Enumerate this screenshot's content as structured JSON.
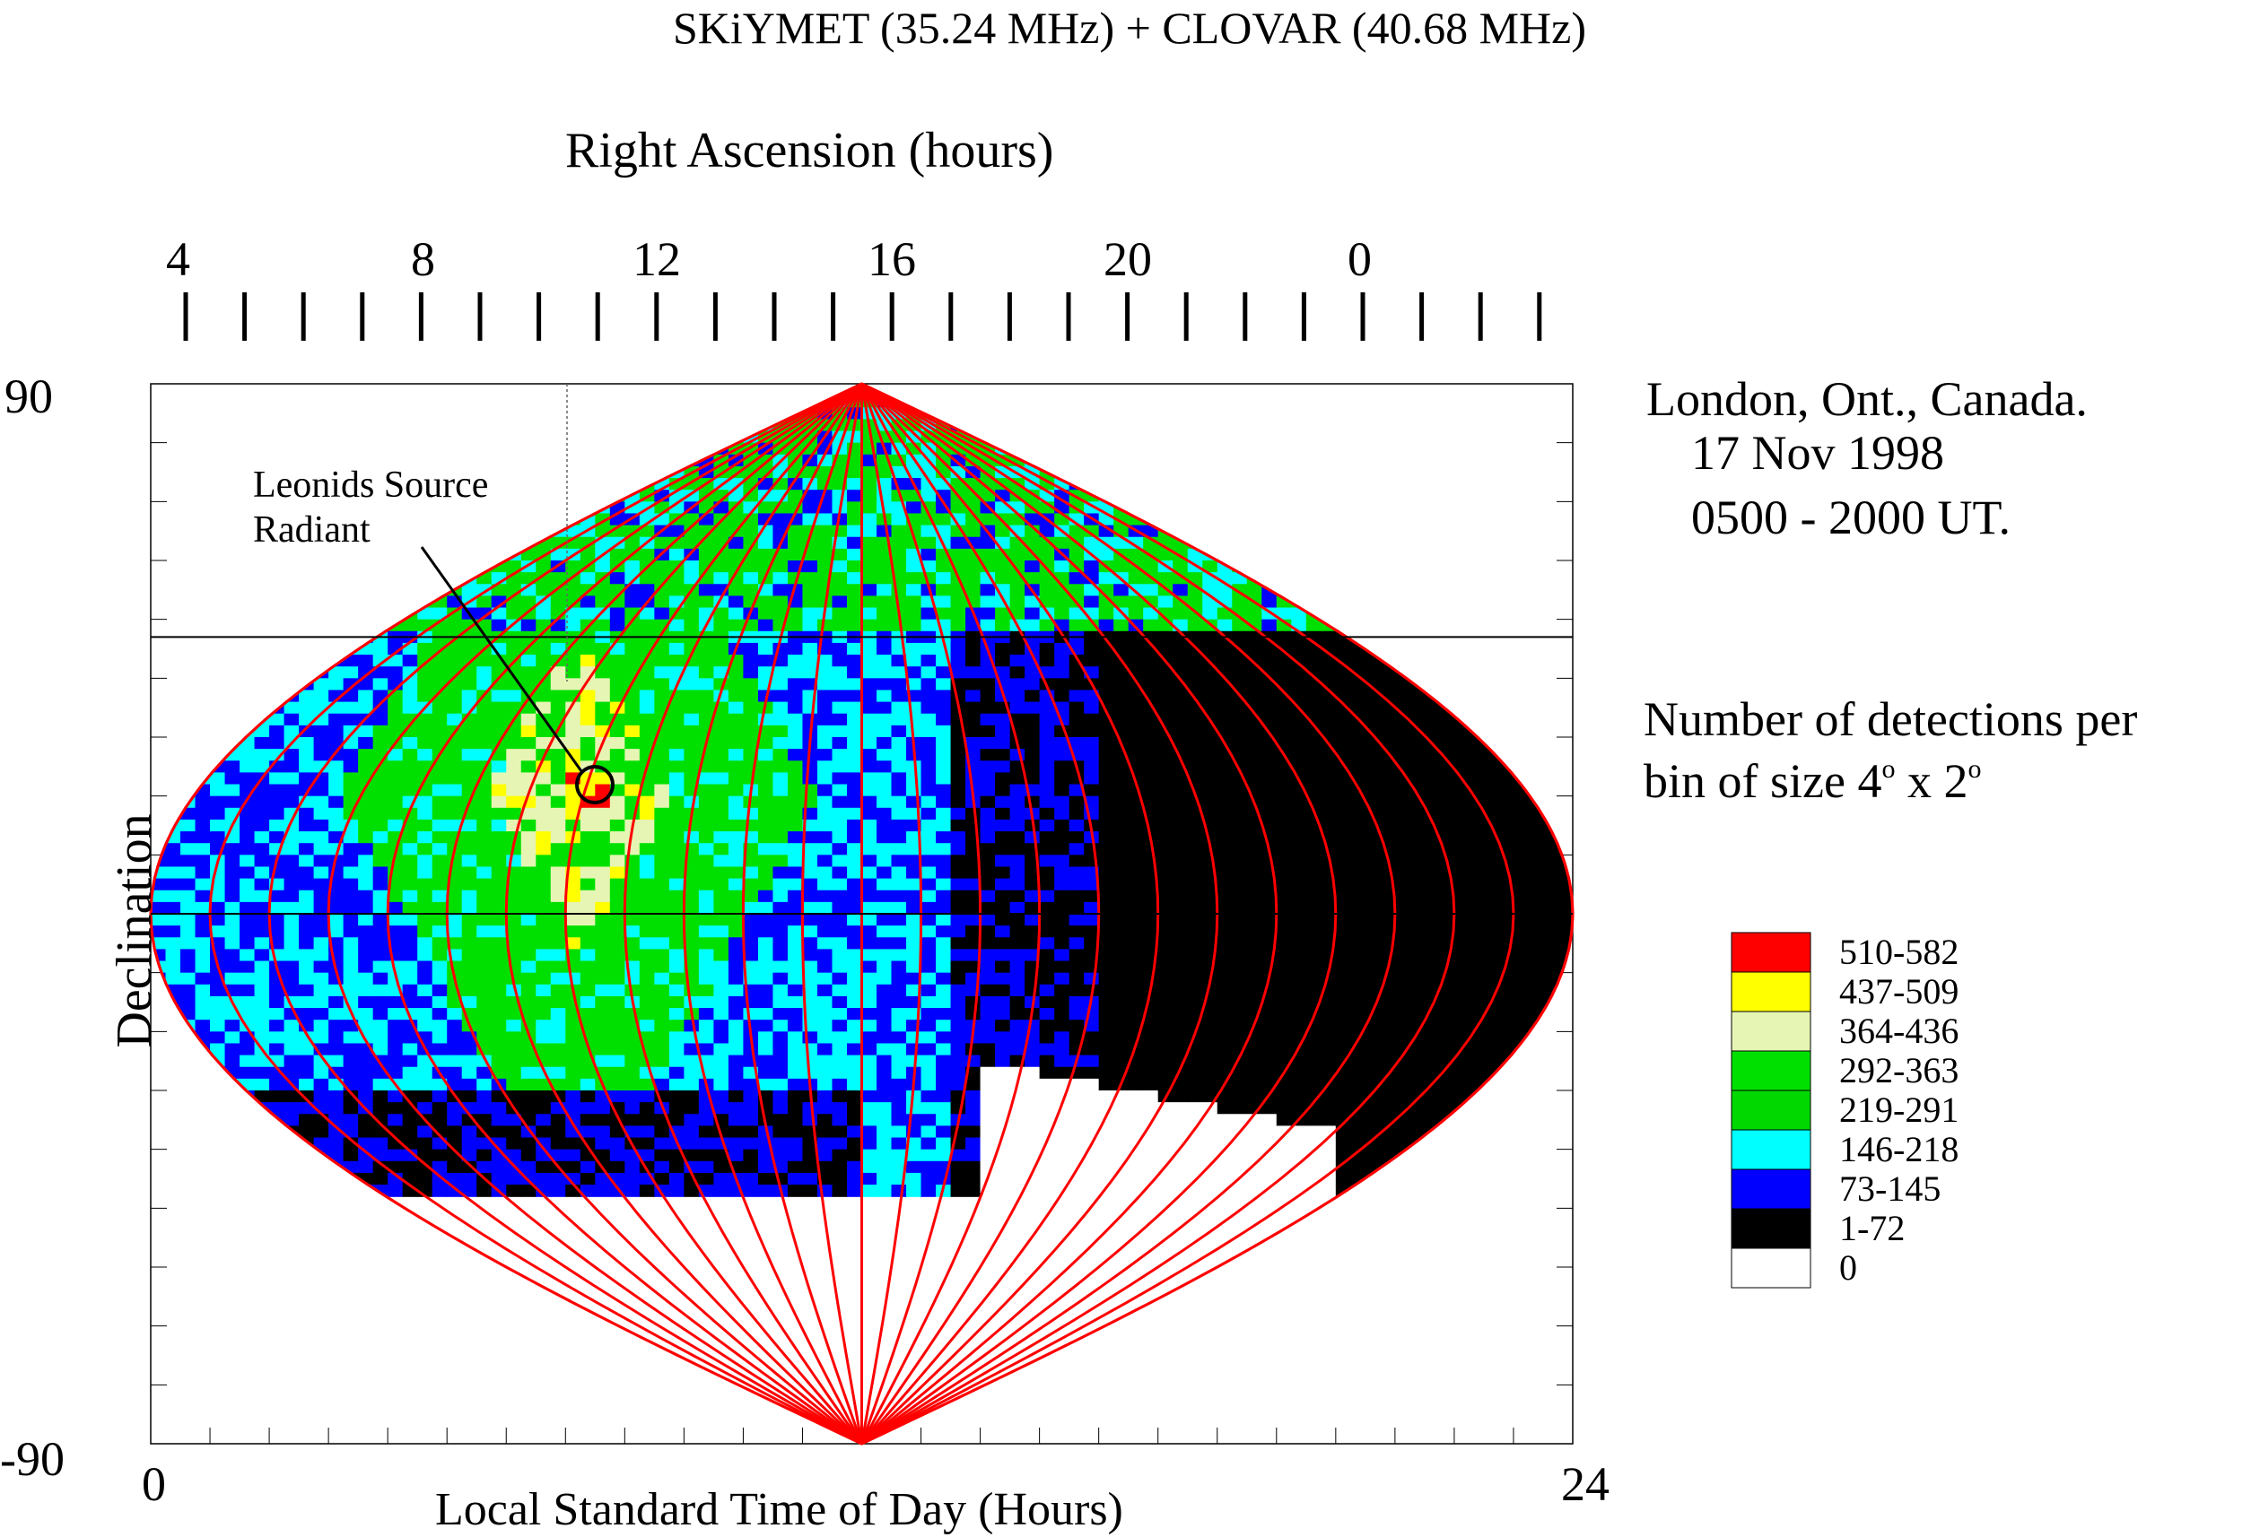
{
  "chart_data": {
    "type": "heatmap",
    "title": "SKiYMET (35.24 MHz) + CLOVAR (40.68 MHz)",
    "top_axis_label": "Right Ascension (hours)",
    "top_tick_labels": [
      "4",
      "8",
      "12",
      "16",
      "20",
      "0"
    ],
    "xlabel": "Local Standard Time of Day (Hours)",
    "x_tick_labels": [
      "0",
      "24"
    ],
    "xlim": [
      0,
      24
    ],
    "ylabel": "Declination",
    "y_tick_labels": [
      "90",
      "-90"
    ],
    "ylim": [
      -90,
      90
    ],
    "station": "London, Ont., Canada.",
    "date": "17 Nov 1998",
    "time_range": "0500 - 2000 UT.",
    "caption_line1": "Number of detections per",
    "caption_line2_pre": "bin of size 4",
    "caption_line2_mid": " x 2",
    "caption_deg": "o",
    "annotation_line1": "Leonids Source",
    "annotation_line2": "Radiant",
    "annotation_point": {
      "lst": 7.4,
      "dec": 21
    },
    "horizontal_reference_lines_dec": [
      47,
      0
    ],
    "legend": [
      {
        "range": "510-582",
        "color": "#ff0000"
      },
      {
        "range": "437-509",
        "color": "#ffff00"
      },
      {
        "range": "364-436",
        "color": "#e6f5b3"
      },
      {
        "range": "292-363",
        "color": "#00e000"
      },
      {
        "range": "219-291",
        "color": "#00d800"
      },
      {
        "range": "146-218",
        "color": "#00ffff"
      },
      {
        "range": "73-145",
        "color": "#0000ff"
      },
      {
        "range": "1-72",
        "color": "#000000"
      },
      {
        "range": "0",
        "color": "#ffffff"
      }
    ],
    "grid_line_color": "#ff0000"
  }
}
